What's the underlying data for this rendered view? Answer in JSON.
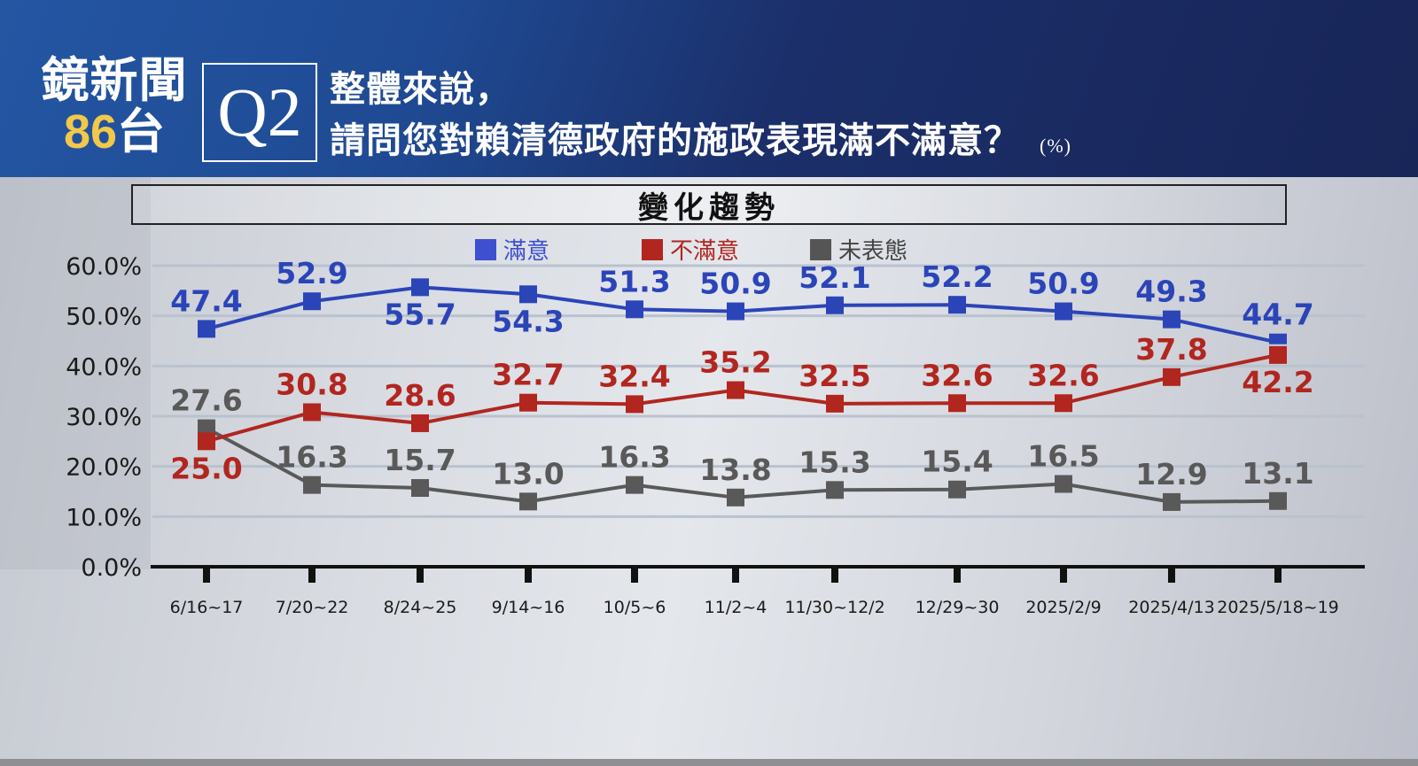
{
  "header": {
    "logo_line1": "鏡新聞",
    "logo_channel_number": "86",
    "logo_channel_suffix": "台",
    "question_number": "Q2",
    "question_line1": "整體來說，",
    "question_line2": "請問您對賴清德政府的施政表現滿不滿意？",
    "unit": "(%)"
  },
  "panel_title": "變化趨勢",
  "colors": {
    "satisfied": "#2b45b8",
    "dissatisfied": "#b1261f",
    "no_opinion": "#595959",
    "header_bg_left": "#2456a3",
    "header_bg_right": "#182557",
    "logo_number": "#f2c84b"
  },
  "chart_data": {
    "type": "line",
    "title": "變化趨勢",
    "xlabel": "",
    "ylabel": "",
    "ylim": [
      0,
      60
    ],
    "yticks": [
      "0.0%",
      "10.0%",
      "20.0%",
      "30.0%",
      "40.0%",
      "50.0%",
      "60.0%"
    ],
    "grid": true,
    "legend_position": "top",
    "categories": [
      "6/16~17",
      "7/20~22",
      "8/24~25",
      "9/14~16",
      "10/5~6",
      "11/2~4",
      "11/30~12/2",
      "12/29~30",
      "2025/2/9",
      "2025/4/13",
      "2025/5/18~19"
    ],
    "series": [
      {
        "name": "滿意",
        "color": "#2b45b8",
        "values": [
          47.4,
          52.9,
          55.7,
          54.3,
          51.3,
          50.9,
          52.1,
          52.2,
          50.9,
          49.3,
          44.7
        ]
      },
      {
        "name": "不滿意",
        "color": "#b1261f",
        "values": [
          25.0,
          30.8,
          28.6,
          32.7,
          32.4,
          35.2,
          32.5,
          32.6,
          32.6,
          37.8,
          42.2
        ]
      },
      {
        "name": "未表態",
        "color": "#595959",
        "values": [
          27.6,
          16.3,
          15.7,
          13.0,
          16.3,
          13.8,
          15.3,
          15.4,
          16.5,
          12.9,
          13.1
        ]
      }
    ]
  }
}
